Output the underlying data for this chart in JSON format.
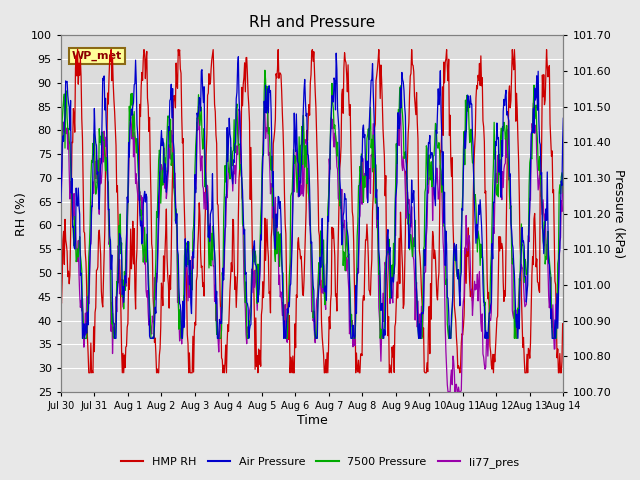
{
  "title": "RH and Pressure",
  "xlabel": "Time",
  "ylabel_left": "RH (%)",
  "ylabel_right": "Pressure (kPa)",
  "ylim_left": [
    25,
    100
  ],
  "ylim_right": [
    100.7,
    101.7
  ],
  "yticks_left": [
    25,
    30,
    35,
    40,
    45,
    50,
    55,
    60,
    65,
    70,
    75,
    80,
    85,
    90,
    95,
    100
  ],
  "yticks_right": [
    100.7,
    100.8,
    100.9,
    101.0,
    101.1,
    101.2,
    101.3,
    101.4,
    101.5,
    101.6,
    101.7
  ],
  "xtick_labels": [
    "Jul 30",
    "Jul 31",
    "Aug 1",
    "Aug 2",
    "Aug 3",
    "Aug 4",
    "Aug 5",
    "Aug 6",
    "Aug 7",
    "Aug 8",
    "Aug 9",
    "Aug 10",
    "Aug 11",
    "Aug 12",
    "Aug 13",
    "Aug 14"
  ],
  "annotation_text": "WP_met",
  "annotation_color": "#8B0000",
  "annotation_bg": "#FFFF99",
  "annotation_border": "#8B6914",
  "colors": {
    "HMP_RH": "#CC0000",
    "Air_Pressure": "#0000CC",
    "7500_Pressure": "#00AA00",
    "li77_pres": "#9900AA"
  },
  "legend_labels": [
    "HMP RH",
    "Air Pressure",
    "7500 Pressure",
    "li77_pres"
  ],
  "legend_colors": [
    "#CC0000",
    "#0000CC",
    "#00AA00",
    "#9900AA"
  ],
  "background_color": "#E8E8E8",
  "plot_bg": "#DCDCDC",
  "grid_color": "#FFFFFF",
  "figsize": [
    6.4,
    4.8
  ],
  "dpi": 100
}
